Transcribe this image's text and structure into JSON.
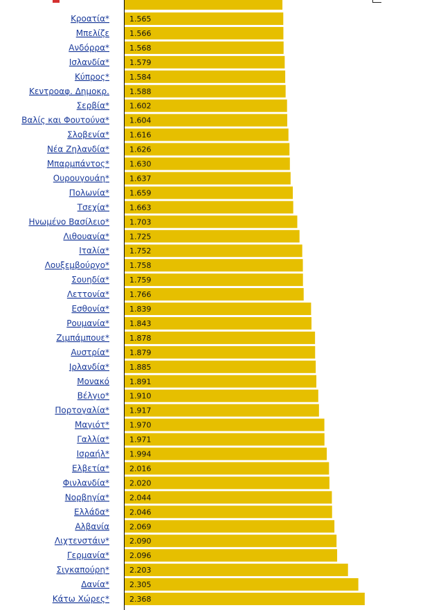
{
  "colors": {
    "bar": "#e6bf00",
    "axis": "#000000",
    "label": "#1a3a9a",
    "value": "#111111",
    "top_icon_red": "#d43030",
    "top_icon_gray": "#bbbbbb",
    "top_icon_dark": "#222222"
  },
  "chart_data": {
    "type": "bar",
    "orientation": "horizontal",
    "categories": [
      "Κροατία*",
      "Μπελίζε",
      "Ανδόρρα*",
      "Ισλανδία*",
      "Κύπρος*",
      "Κεντροαφ. Δημοκρ.",
      "Σερβία*",
      "Βαλίς και Φουτούνα*",
      "Σλοβενία*",
      "Νέα Ζηλανδία*",
      "Μπαρμπάντος*",
      "Ουρουγουάη*",
      "Πολωνία*",
      "Τσεχία*",
      "Ηνωμένο Βασίλειο*",
      "Λιθουανία*",
      "Ιταλία*",
      "Λουξεμβούργο*",
      "Σουηδία*",
      "Λεττονία*",
      "Εσθονία*",
      "Ρουμανία*",
      "Ζιμπάμπουε*",
      "Αυστρία*",
      "Ιρλανδία*",
      "Μονακό",
      "Βέλγιο*",
      "Πορτογαλία*",
      "Μαγιότ*",
      "Γαλλία*",
      "Ισραήλ*",
      "Ελβετία*",
      "Φινλανδία*",
      "Νορβηγία*",
      "Ελλάδα*",
      "Αλβανία",
      "Λιχτενστάιν*",
      "Γερμανία*",
      "Σιγκαπούρη*",
      "Δανία*",
      "Κάτω Χώρες*"
    ],
    "values": [
      1.565,
      1.566,
      1.568,
      1.579,
      1.584,
      1.588,
      1.602,
      1.604,
      1.616,
      1.626,
      1.63,
      1.637,
      1.659,
      1.663,
      1.703,
      1.725,
      1.752,
      1.758,
      1.759,
      1.766,
      1.839,
      1.843,
      1.878,
      1.879,
      1.885,
      1.891,
      1.91,
      1.917,
      1.97,
      1.971,
      1.994,
      2.016,
      2.02,
      2.044,
      2.046,
      2.069,
      2.09,
      2.096,
      2.203,
      2.305,
      2.368
    ],
    "value_labels": [
      "1.565",
      "1.566",
      "1.568",
      "1.579",
      "1.584",
      "1.588",
      "1.602",
      "1.604",
      "1.616",
      "1.626",
      "1.630",
      "1.637",
      "1.659",
      "1.663",
      "1.703",
      "1.725",
      "1.752",
      "1.758",
      "1.759",
      "1.766",
      "1.839",
      "1.843",
      "1.878",
      "1.879",
      "1.885",
      "1.891",
      "1.910",
      "1.917",
      "1.970",
      "1.971",
      "1.994",
      "2.016",
      "2.020",
      "2.044",
      "2.046",
      "2.069",
      "2.090",
      "2.096",
      "2.203",
      "2.305",
      "2.368"
    ],
    "xlim": [
      0,
      2.5
    ],
    "grid": false,
    "legend": "none"
  }
}
